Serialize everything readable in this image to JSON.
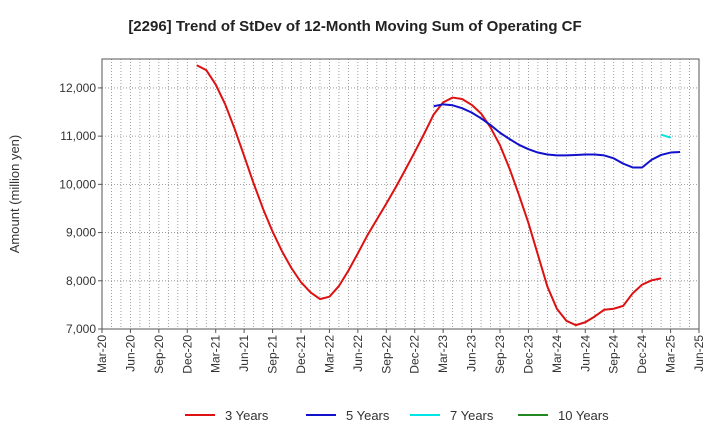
{
  "chart_data": {
    "type": "line",
    "title": "[2296]  Trend of StDev of 12-Month Moving Sum of Operating CF",
    "ylabel": "Amount (million yen)",
    "xlabel": "",
    "ylim": [
      7000,
      12600
    ],
    "yticks": [
      7000,
      8000,
      9000,
      10000,
      11000,
      12000
    ],
    "ytick_labels": [
      "7,000",
      "8,000",
      "9,000",
      "10,000",
      "11,000",
      "12,000"
    ],
    "x_start": "2020-03",
    "x_end": "2025-06",
    "xtick_labels": [
      "Mar-20",
      "Jun-20",
      "Sep-20",
      "Dec-20",
      "Mar-21",
      "Jun-21",
      "Sep-21",
      "Dec-21",
      "Mar-22",
      "Jun-22",
      "Sep-22",
      "Dec-22",
      "Mar-23",
      "Jun-23",
      "Sep-23",
      "Dec-23",
      "Mar-24",
      "Jun-24",
      "Sep-24",
      "Dec-24",
      "Mar-25",
      "Jun-25"
    ],
    "grid": true,
    "legend_position": "bottom",
    "series": [
      {
        "name": "3 Years",
        "color": "#dd1111",
        "start": "2021-01",
        "values": [
          12470,
          12370,
          12070,
          11660,
          11150,
          10590,
          10020,
          9490,
          9020,
          8610,
          8260,
          7970,
          7760,
          7620,
          7670,
          7890,
          8210,
          8570,
          8940,
          9270,
          9600,
          9940,
          10300,
          10670,
          11050,
          11450,
          11700,
          11800,
          11770,
          11650,
          11470,
          11180,
          10810,
          10330,
          9780,
          9200,
          8540,
          7880,
          7420,
          7170,
          7080,
          7140,
          7260,
          7400,
          7420,
          7480,
          7740,
          7920,
          8010,
          8050
        ]
      },
      {
        "name": "5 Years",
        "color": "#1111cc",
        "start": "2023-02",
        "values": [
          11620,
          11660,
          11640,
          11580,
          11490,
          11370,
          11230,
          11070,
          10940,
          10820,
          10730,
          10660,
          10620,
          10600,
          10600,
          10610,
          10620,
          10620,
          10600,
          10540,
          10430,
          10350,
          10350,
          10510,
          10610,
          10660,
          10670
        ]
      },
      {
        "name": "7 Years",
        "color": "#00e5e5",
        "start": "2025-02",
        "values": [
          11030,
          10970
        ]
      },
      {
        "name": "10 Years",
        "color": "#228822",
        "start": "2025-03",
        "values": []
      }
    ]
  }
}
